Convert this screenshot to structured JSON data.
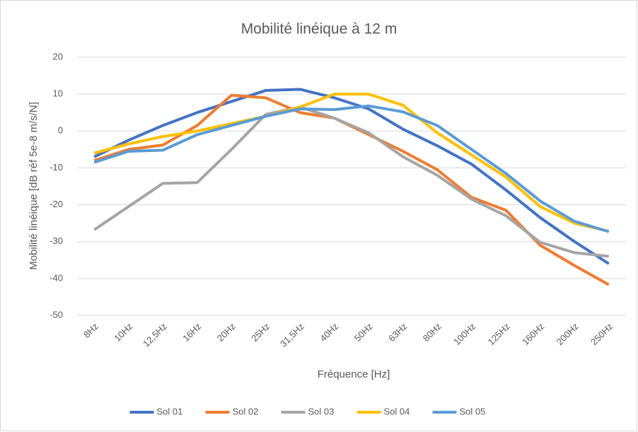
{
  "chart_data": {
    "type": "line",
    "title": "Mobilité linéique à 12 m",
    "x_label": "Fréquence [Hz]",
    "y_label": "Mobilité linéique [dB réf 5e-8 m/s/N]",
    "categories": [
      "8Hz",
      "10Hz",
      "12,5Hz",
      "16Hz",
      "20Hz",
      "25Hz",
      "31,5Hz",
      "40Hz",
      "50Hz",
      "63Hz",
      "80Hz",
      "100Hz",
      "125Hz",
      "160Hz",
      "200Hz",
      "250Hz"
    ],
    "series": [
      {
        "name": "Sol 01",
        "color": "#4472c4",
        "values": [
          -7,
          -2.5,
          1.5,
          5,
          8,
          11,
          11.3,
          9,
          6,
          0.5,
          -4,
          -9,
          -16,
          -23.5,
          -30,
          -36
        ]
      },
      {
        "name": "Sol 02",
        "color": "#ed7d31",
        "values": [
          -8,
          -5,
          -3.8,
          1.5,
          9.7,
          9,
          5,
          3.5,
          -1,
          -5.5,
          -10.5,
          -18,
          -21.5,
          -31,
          -36.5,
          -41.7
        ]
      },
      {
        "name": "Sol 03",
        "color": "#a5a5a5",
        "values": [
          -26.8,
          -20.5,
          -14.2,
          -14,
          -5,
          4.5,
          6.5,
          3.5,
          -0.5,
          -7,
          -12,
          -18.5,
          -23,
          -30.2,
          -33,
          -34
        ]
      },
      {
        "name": "Sol 04",
        "color": "#ffc000",
        "values": [
          -6,
          -3.5,
          -1.5,
          0,
          2,
          4,
          6.5,
          10,
          10,
          7,
          -0.5,
          -6.5,
          -12.5,
          -20.5,
          -25,
          -27.2
        ]
      },
      {
        "name": "Sol 05",
        "color": "#5b9bd5",
        "values": [
          -8.5,
          -5.5,
          -5.2,
          -1,
          1.5,
          4,
          6,
          5.8,
          6.8,
          5.2,
          1.5,
          -5,
          -11.5,
          -19,
          -24.5,
          -27.3
        ]
      }
    ],
    "ylim": [
      -50,
      20
    ],
    "yticks": [
      -50,
      -40,
      -30,
      -20,
      -10,
      0,
      10,
      20
    ],
    "grid": true,
    "legend": "bottom"
  }
}
